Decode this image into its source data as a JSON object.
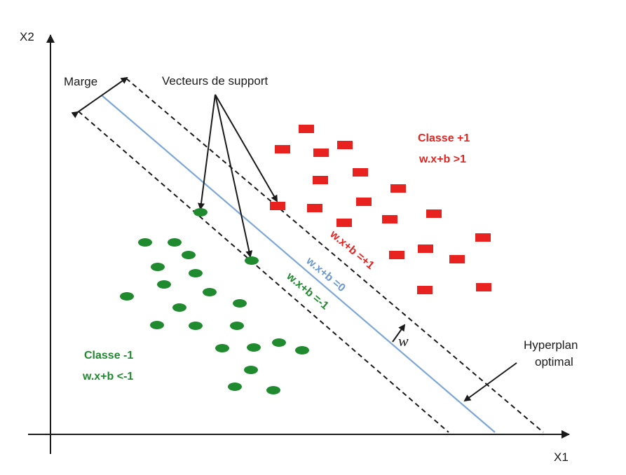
{
  "axes": {
    "x_label": "X1",
    "y_label": "X2"
  },
  "labels": {
    "margin": "Marge",
    "support_vectors": "Vecteurs de support",
    "class_pos_title": "Classe +1",
    "class_pos_rule": "w.x+b >1",
    "class_neg_title": "Classe -1",
    "class_neg_rule": "w.x+b <-1",
    "hyperplane_line1": "Hyperplan",
    "hyperplane_line2": "optimal",
    "normal_vector": "w"
  },
  "lines": {
    "upper_margin": "w.x+b =+1",
    "hyperplane": "w.x+b =0",
    "lower_margin": "w.x+b =-1"
  },
  "colors": {
    "class_pos": "#e8231f",
    "class_neg": "#1f8a2e",
    "hyperplane": "#7da7d9",
    "axis": "#1a1a1a"
  },
  "chart_data": {
    "type": "scatter",
    "series": [
      {
        "name": "Classe +1",
        "marker": "rectangle",
        "count": 21
      },
      {
        "name": "Classe -1",
        "marker": "ellipse",
        "count": 27
      }
    ]
  }
}
